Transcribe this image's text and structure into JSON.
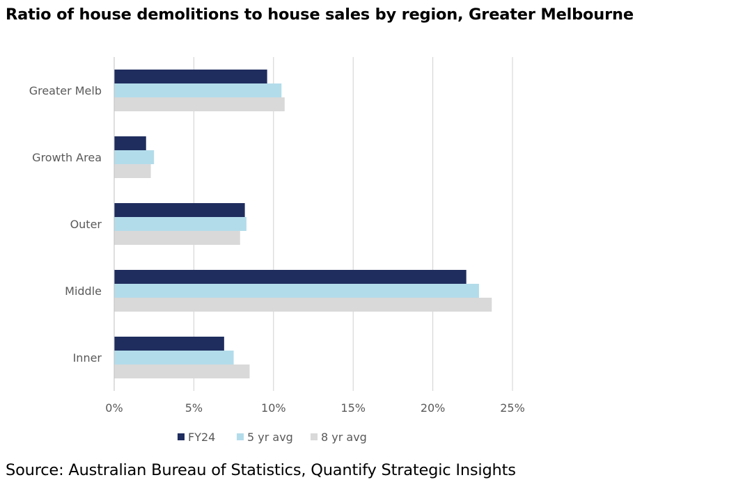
{
  "header": {
    "title": "Ratio of house demolitions to house sales by region, Greater Melbourne"
  },
  "footer": {
    "source": "Source: Australian Bureau of Statistics, Quantify Strategic Insights"
  },
  "chart_data": {
    "type": "bar",
    "orientation": "horizontal",
    "title": "Ratio of house demolitions to house sales by region, Greater Melbourne",
    "categories": [
      "Greater Melb",
      "Growth Area",
      "Outer",
      "Middle",
      "Inner"
    ],
    "series": [
      {
        "name": "FY24",
        "color": "#1f2d5e",
        "values": [
          9.6,
          2.0,
          8.2,
          22.1,
          6.9
        ]
      },
      {
        "name": "5 yr avg",
        "color": "#b3dcea",
        "values": [
          10.5,
          2.5,
          8.3,
          22.9,
          7.5
        ]
      },
      {
        "name": "8 yr avg",
        "color": "#d9d9d9",
        "values": [
          10.7,
          2.3,
          7.9,
          23.7,
          8.5
        ]
      }
    ],
    "x_ticks": [
      "0%",
      "5%",
      "10%",
      "15%",
      "20%",
      "25%"
    ],
    "xlim": [
      0,
      25
    ],
    "value_unit": "%",
    "grid": "vertical",
    "legend_position": "bottom"
  }
}
